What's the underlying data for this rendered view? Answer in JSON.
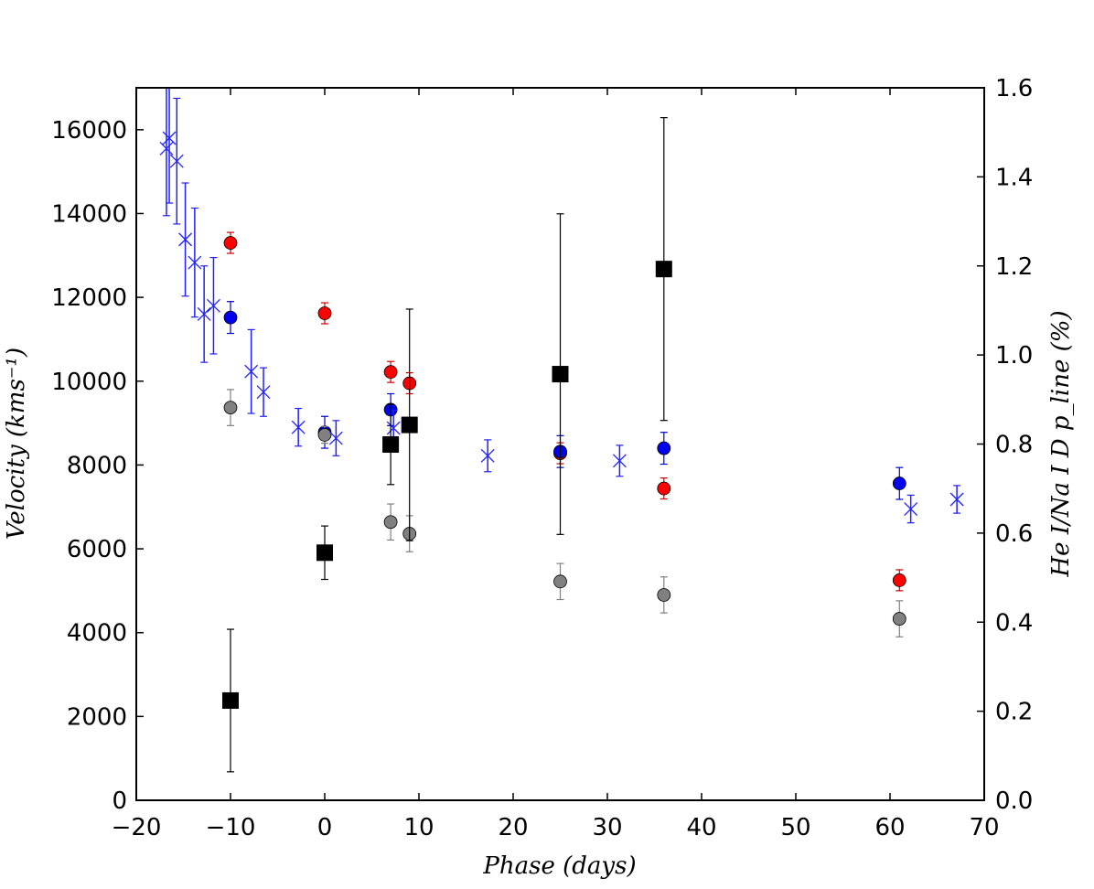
{
  "chart_data": {
    "type": "scatter",
    "xlabel": "Phase (days)",
    "ylabel_left": "Velocity (kms⁻¹)",
    "ylabel_right": "He I/Na I D p_line (%)",
    "xlim": [
      -20,
      70
    ],
    "ylim_left": [
      0,
      17000
    ],
    "ylim_right": [
      0.0,
      1.6
    ],
    "x_ticks": [
      -20,
      -10,
      0,
      10,
      20,
      30,
      40,
      50,
      60,
      70
    ],
    "y_left_ticks": [
      0,
      2000,
      4000,
      6000,
      8000,
      10000,
      12000,
      14000,
      16000
    ],
    "y_right_ticks": [
      "0.0",
      "0.2",
      "0.4",
      "0.6",
      "0.8",
      "1.0",
      "1.2",
      "1.4",
      "1.6"
    ],
    "grid": false,
    "colors": {
      "red": "#ff0000",
      "blue": "#0000ee",
      "gray": "#808080",
      "black": "#000000",
      "cross": "#2020ff"
    },
    "series": [
      {
        "marker": "circle",
        "color": "red",
        "axis": "left",
        "points": [
          {
            "x": -10,
            "y": 13300,
            "err": 250
          },
          {
            "x": 0,
            "y": 11620,
            "err": 250
          },
          {
            "x": 7,
            "y": 10220,
            "err": 250
          },
          {
            "x": 9,
            "y": 9950,
            "err": 250
          },
          {
            "x": 25,
            "y": 8280,
            "err": 250
          },
          {
            "x": 36,
            "y": 7440,
            "err": 250
          },
          {
            "x": 61,
            "y": 5250,
            "err": 250
          }
        ]
      },
      {
        "marker": "circle",
        "color": "blue",
        "axis": "left",
        "points": [
          {
            "x": -10,
            "y": 11520,
            "err": 380
          },
          {
            "x": 0,
            "y": 8780,
            "err": 380
          },
          {
            "x": 7,
            "y": 9320,
            "err": 380
          },
          {
            "x": 25,
            "y": 8320,
            "err": 380
          },
          {
            "x": 36,
            "y": 8400,
            "err": 380
          },
          {
            "x": 61,
            "y": 7560,
            "err": 380
          }
        ]
      },
      {
        "marker": "circle",
        "color": "gray",
        "axis": "left",
        "points": [
          {
            "x": -10,
            "y": 9370,
            "err": 430
          },
          {
            "x": 0,
            "y": 8720,
            "err": 200
          },
          {
            "x": 7,
            "y": 6640,
            "err": 430
          },
          {
            "x": 9,
            "y": 6360,
            "err": 430
          },
          {
            "x": 25,
            "y": 5220,
            "err": 430
          },
          {
            "x": 36,
            "y": 4900,
            "err": 430
          },
          {
            "x": 61,
            "y": 4330,
            "err": 430
          }
        ]
      },
      {
        "marker": "x",
        "color": "cross",
        "axis": "left",
        "points": [
          {
            "x": -16.8,
            "y": 15550,
            "err": 1600
          },
          {
            "x": -16.5,
            "y": 15800,
            "err": 1550
          },
          {
            "x": -15.7,
            "y": 15250,
            "err": 1500
          },
          {
            "x": -14.8,
            "y": 13380,
            "err": 1350
          },
          {
            "x": -13.8,
            "y": 12830,
            "err": 1300
          },
          {
            "x": -12.8,
            "y": 11600,
            "err": 1150
          },
          {
            "x": -11.8,
            "y": 11800,
            "err": 1150
          },
          {
            "x": -7.8,
            "y": 10230,
            "err": 1000
          },
          {
            "x": -6.5,
            "y": 9740,
            "err": 580
          },
          {
            "x": -2.8,
            "y": 8900,
            "err": 450
          },
          {
            "x": 1.2,
            "y": 8640,
            "err": 420
          },
          {
            "x": 7.3,
            "y": 8880,
            "err": 420
          },
          {
            "x": 17.3,
            "y": 8220,
            "err": 380
          },
          {
            "x": 31.3,
            "y": 8100,
            "err": 370
          },
          {
            "x": 62.2,
            "y": 6950,
            "err": 330
          },
          {
            "x": 67.1,
            "y": 7180,
            "err": 330
          }
        ]
      },
      {
        "marker": "square",
        "color": "black",
        "axis": "right",
        "points": [
          {
            "x": -10,
            "y": 0.224,
            "err": 0.16
          },
          {
            "x": 0,
            "y": 0.556,
            "err": 0.06
          },
          {
            "x": 7,
            "y": 0.799,
            "err": 0.09
          },
          {
            "x": 9,
            "y": 0.843,
            "err": 0.26
          },
          {
            "x": 25,
            "y": 0.957,
            "err": 0.36
          },
          {
            "x": 36,
            "y": 1.193,
            "err": 0.34
          }
        ]
      }
    ]
  }
}
